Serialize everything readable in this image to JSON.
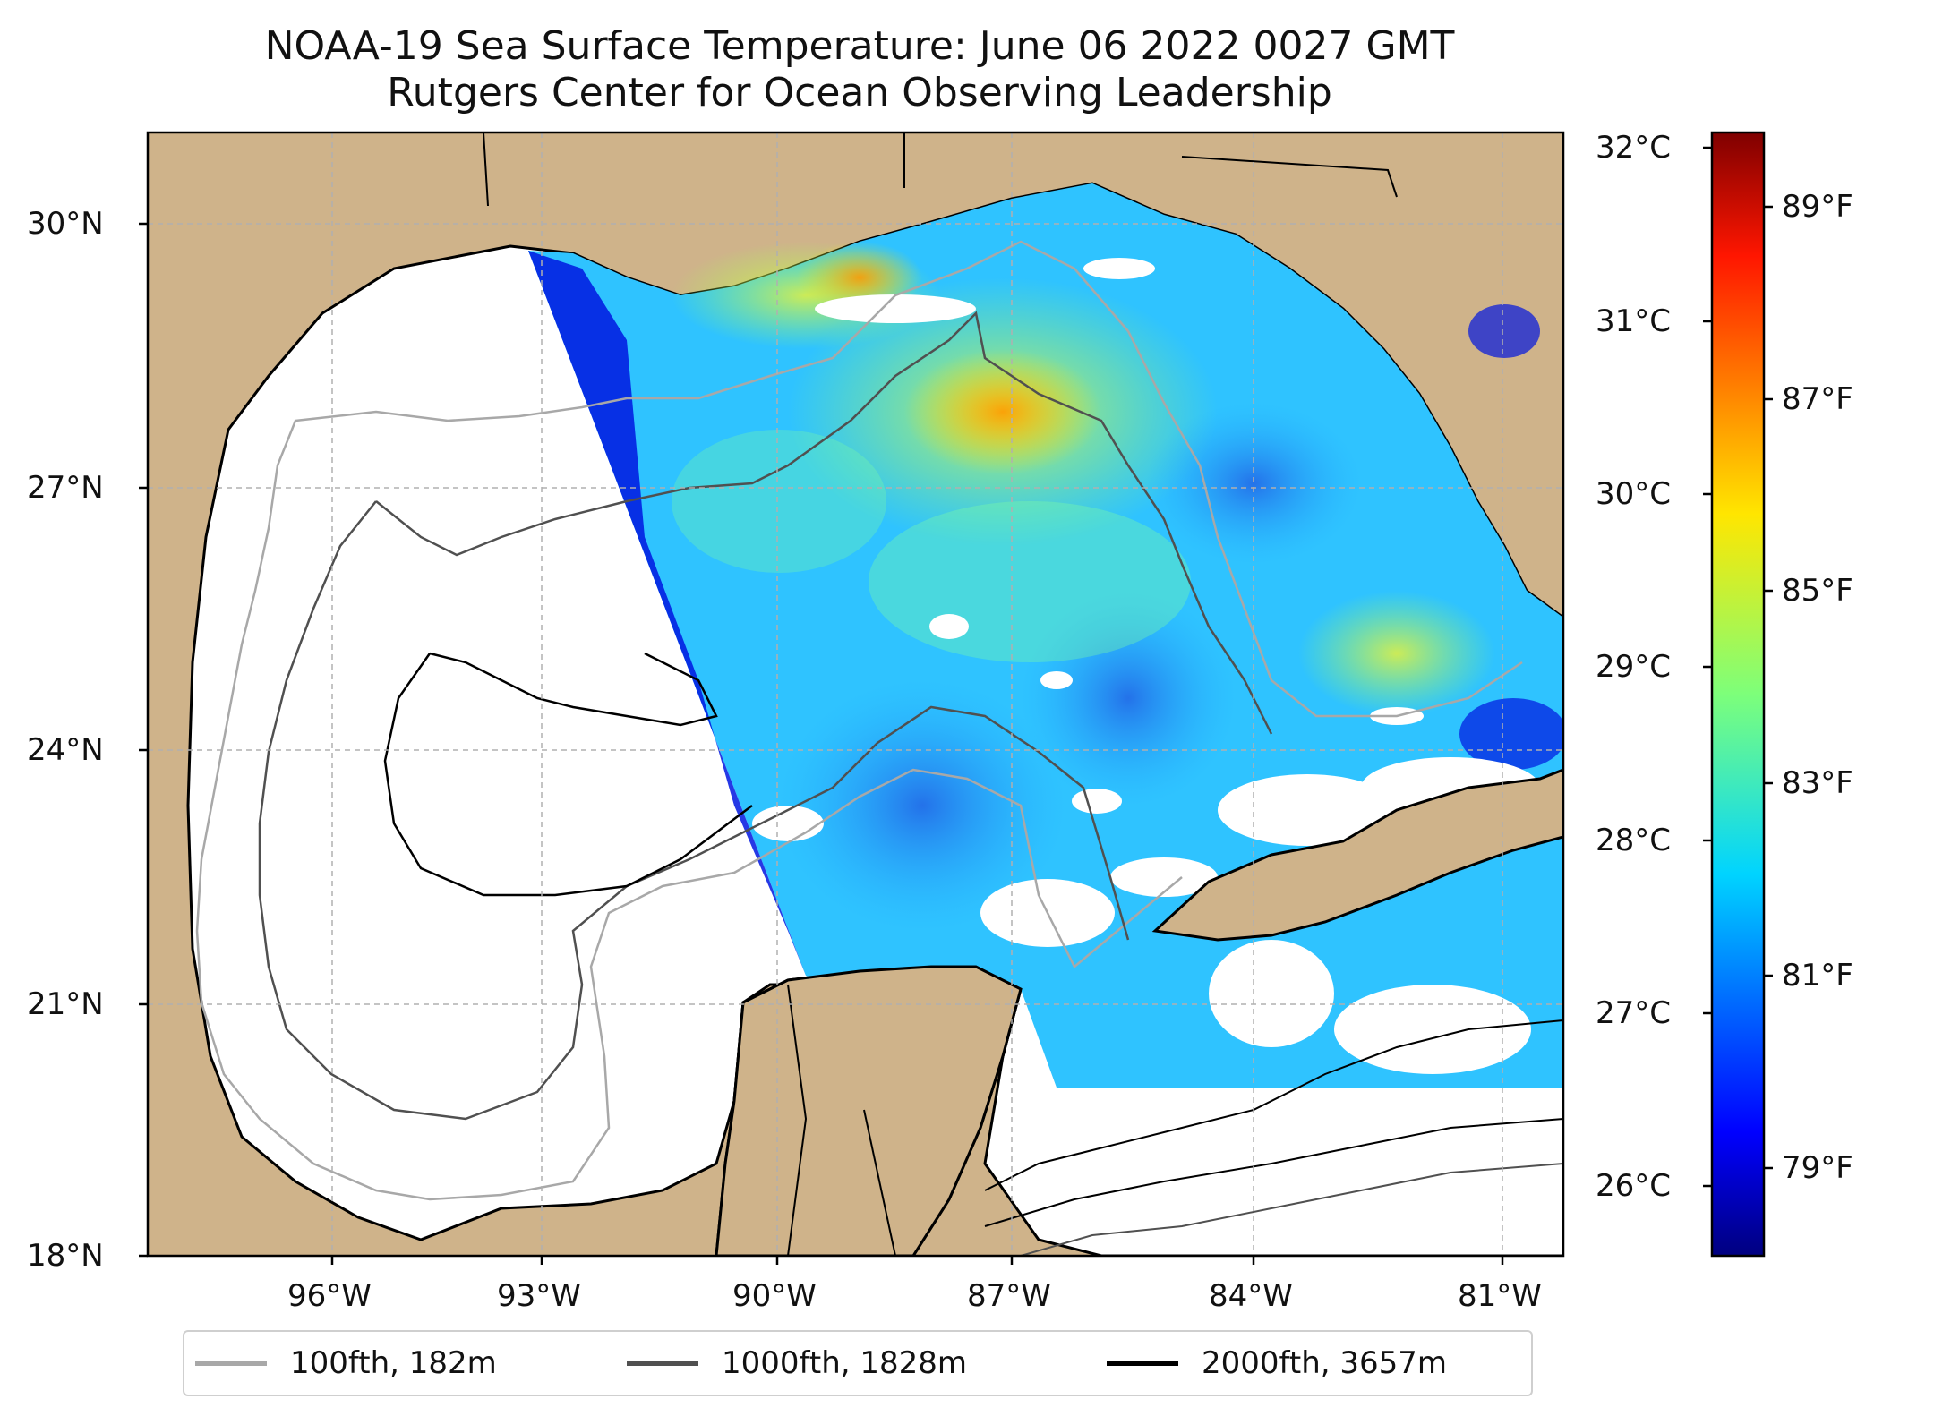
{
  "title": "NOAA-19 Sea Surface Temperature: June 06 2022 0027 GMT",
  "subtitle": "Rutgers Center for Ocean Observing Leadership",
  "map": {
    "lat_ticks": [
      "30°N",
      "27°N",
      "24°N",
      "21°N",
      "18°N"
    ],
    "lon_ticks": [
      "96°W",
      "93°W",
      "90°W",
      "87°W",
      "84°W",
      "81°W"
    ],
    "colors": {
      "land": "#cfb38a",
      "water_nodata": "#ffffff",
      "grid": "#b0b0b0"
    }
  },
  "colorbar": {
    "celsius_ticks": [
      "32°C",
      "31°C",
      "30°C",
      "29°C",
      "28°C",
      "27°C",
      "26°C"
    ],
    "fahrenheit_ticks": [
      "89°F",
      "87°F",
      "85°F",
      "83°F",
      "81°F",
      "79°F"
    ],
    "colormap": "jet",
    "range_c": [
      25.6,
      32.1
    ]
  },
  "legend": [
    {
      "label": "100fth, 182m",
      "color": "#a8a8a8"
    },
    {
      "label": "1000fth, 1828m",
      "color": "#505050"
    },
    {
      "label": "2000fth, 3657m",
      "color": "#000000"
    }
  ]
}
